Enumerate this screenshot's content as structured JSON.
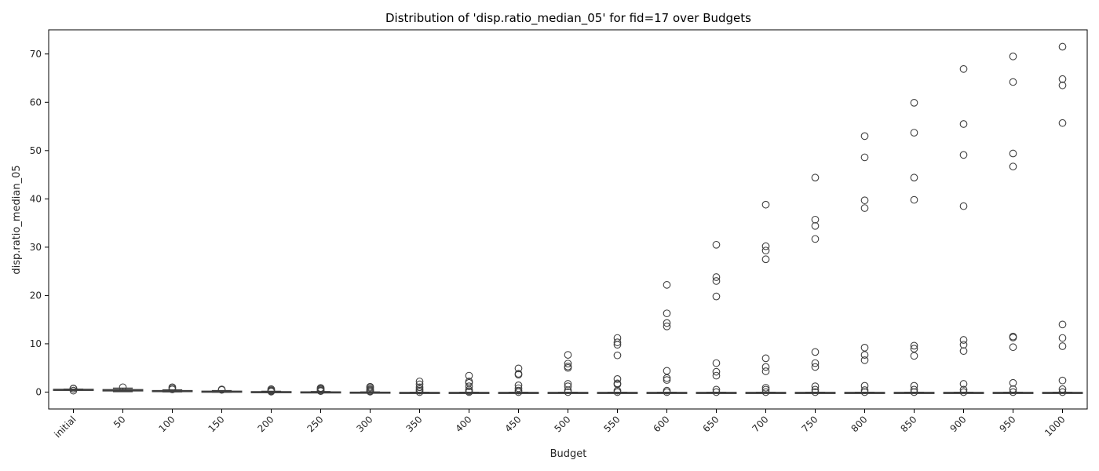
{
  "chart_data": {
    "type": "box",
    "title": "Distribution of 'disp.ratio_median_05' for fid=17 over Budgets",
    "xlabel": "Budget",
    "ylabel": "disp.ratio_median_05",
    "ylim": [
      -3.5,
      75
    ],
    "yticks": [
      0,
      10,
      20,
      30,
      40,
      50,
      60,
      70
    ],
    "grid": false,
    "legend": "none",
    "colors": {
      "box": "#3b75af",
      "line": "#3f3f3f",
      "outlier": "#3f3f3f"
    },
    "categories": [
      "initial",
      "50",
      "100",
      "150",
      "200",
      "250",
      "300",
      "350",
      "400",
      "450",
      "500",
      "550",
      "600",
      "650",
      "700",
      "750",
      "800",
      "850",
      "900",
      "950",
      "1000"
    ],
    "boxes": [
      {
        "q1": 0.48,
        "median": 0.52,
        "q3": 0.56,
        "whisker_low": 0.42,
        "whisker_high": 0.6,
        "outliers": [
          0.3,
          0.7,
          0.75
        ]
      },
      {
        "q1": 0.25,
        "median": 0.35,
        "q3": 0.5,
        "whisker_low": 0.1,
        "whisker_high": 0.8,
        "outliers": [
          1.0
        ]
      },
      {
        "q1": 0.15,
        "median": 0.2,
        "q3": 0.3,
        "whisker_low": 0.05,
        "whisker_high": 0.45,
        "outliers": [
          0.55,
          0.8,
          1.0
        ]
      },
      {
        "q1": 0.05,
        "median": 0.1,
        "q3": 0.18,
        "whisker_low": 0.0,
        "whisker_high": 0.3,
        "outliers": [
          0.45,
          0.55
        ]
      },
      {
        "q1": 0.0,
        "median": 0.03,
        "q3": 0.08,
        "whisker_low": -0.05,
        "whisker_high": 0.15,
        "outliers": [
          0.25,
          0.4,
          0.6,
          0.1
        ]
      },
      {
        "q1": -0.05,
        "median": -0.02,
        "q3": 0.03,
        "whisker_low": -0.1,
        "whisker_high": 0.1,
        "outliers": [
          0.2,
          0.3,
          0.5,
          0.7,
          0.85
        ]
      },
      {
        "q1": -0.1,
        "median": -0.07,
        "q3": -0.03,
        "whisker_low": -0.15,
        "whisker_high": 0.02,
        "outliers": [
          0.1,
          0.2,
          0.4,
          0.6,
          0.9,
          1.1
        ]
      },
      {
        "q1": -0.12,
        "median": -0.1,
        "q3": -0.08,
        "whisker_low": -0.15,
        "whisker_high": -0.05,
        "outliers": [
          0.0,
          0.3,
          0.6,
          1.0,
          1.6,
          2.2
        ]
      },
      {
        "q1": -0.12,
        "median": -0.1,
        "q3": -0.08,
        "whisker_low": -0.15,
        "whisker_high": -0.05,
        "outliers": [
          0.0,
          0.2,
          0.5,
          1.2,
          1.9,
          2.2,
          3.4
        ]
      },
      {
        "q1": -0.12,
        "median": -0.1,
        "q3": -0.08,
        "whisker_low": -0.15,
        "whisker_high": -0.05,
        "outliers": [
          0.0,
          0.3,
          0.8,
          1.4,
          3.6,
          3.8,
          4.9
        ]
      },
      {
        "q1": -0.12,
        "median": -0.1,
        "q3": -0.08,
        "whisker_low": -0.15,
        "whisker_high": -0.05,
        "outliers": [
          0.0,
          0.4,
          1.2,
          1.7,
          5.0,
          5.3,
          5.9,
          7.7
        ]
      },
      {
        "q1": -0.12,
        "median": -0.1,
        "q3": -0.08,
        "whisker_low": -0.15,
        "whisker_high": -0.05,
        "outliers": [
          0.0,
          0.3,
          1.6,
          1.8,
          2.7,
          7.6,
          9.8,
          10.3,
          11.2
        ]
      },
      {
        "q1": -0.12,
        "median": -0.1,
        "q3": -0.08,
        "whisker_low": -0.15,
        "whisker_high": -0.05,
        "outliers": [
          0.0,
          0.3,
          2.5,
          2.9,
          4.4,
          13.6,
          14.3,
          16.3,
          22.2
        ]
      },
      {
        "q1": -0.12,
        "median": -0.1,
        "q3": -0.08,
        "whisker_low": -0.15,
        "whisker_high": -0.05,
        "outliers": [
          0.0,
          0.5,
          3.4,
          4.2,
          6.0,
          19.8,
          23.0,
          23.8,
          30.5
        ]
      },
      {
        "q1": -0.12,
        "median": -0.1,
        "q3": -0.08,
        "whisker_low": -0.15,
        "whisker_high": -0.05,
        "outliers": [
          0.0,
          0.5,
          0.9,
          4.3,
          5.2,
          7.0,
          27.5,
          29.3,
          30.2,
          38.8
        ]
      },
      {
        "q1": -0.12,
        "median": -0.1,
        "q3": -0.08,
        "whisker_low": -0.15,
        "whisker_high": -0.05,
        "outliers": [
          0.0,
          0.5,
          1.2,
          5.2,
          6.0,
          8.3,
          31.7,
          34.4,
          35.7,
          44.4
        ]
      },
      {
        "q1": -0.12,
        "median": -0.1,
        "q3": -0.08,
        "whisker_low": -0.15,
        "whisker_high": -0.05,
        "outliers": [
          0.0,
          0.4,
          1.3,
          6.6,
          7.7,
          9.2,
          38.1,
          39.7,
          48.6,
          53.0
        ]
      },
      {
        "q1": -0.12,
        "median": -0.1,
        "q3": -0.08,
        "whisker_low": -0.15,
        "whisker_high": -0.05,
        "outliers": [
          0.0,
          0.5,
          1.3,
          7.5,
          9.0,
          9.6,
          39.8,
          44.4,
          53.7,
          59.9
        ]
      },
      {
        "q1": -0.12,
        "median": -0.1,
        "q3": -0.08,
        "whisker_low": -0.15,
        "whisker_high": -0.05,
        "outliers": [
          0.0,
          0.5,
          1.7,
          8.5,
          9.8,
          10.8,
          38.5,
          49.1,
          55.5,
          66.9
        ]
      },
      {
        "q1": -0.12,
        "median": -0.1,
        "q3": -0.08,
        "whisker_low": -0.15,
        "whisker_high": -0.05,
        "outliers": [
          0.0,
          0.6,
          1.9,
          9.3,
          11.3,
          11.5,
          46.7,
          49.4,
          64.2,
          69.5
        ]
      },
      {
        "q1": -0.12,
        "median": -0.1,
        "q3": -0.08,
        "whisker_low": -0.15,
        "whisker_high": -0.05,
        "outliers": [
          0.0,
          0.6,
          2.4,
          9.5,
          11.2,
          14.0,
          55.7,
          63.5,
          64.8,
          71.5
        ]
      }
    ]
  }
}
